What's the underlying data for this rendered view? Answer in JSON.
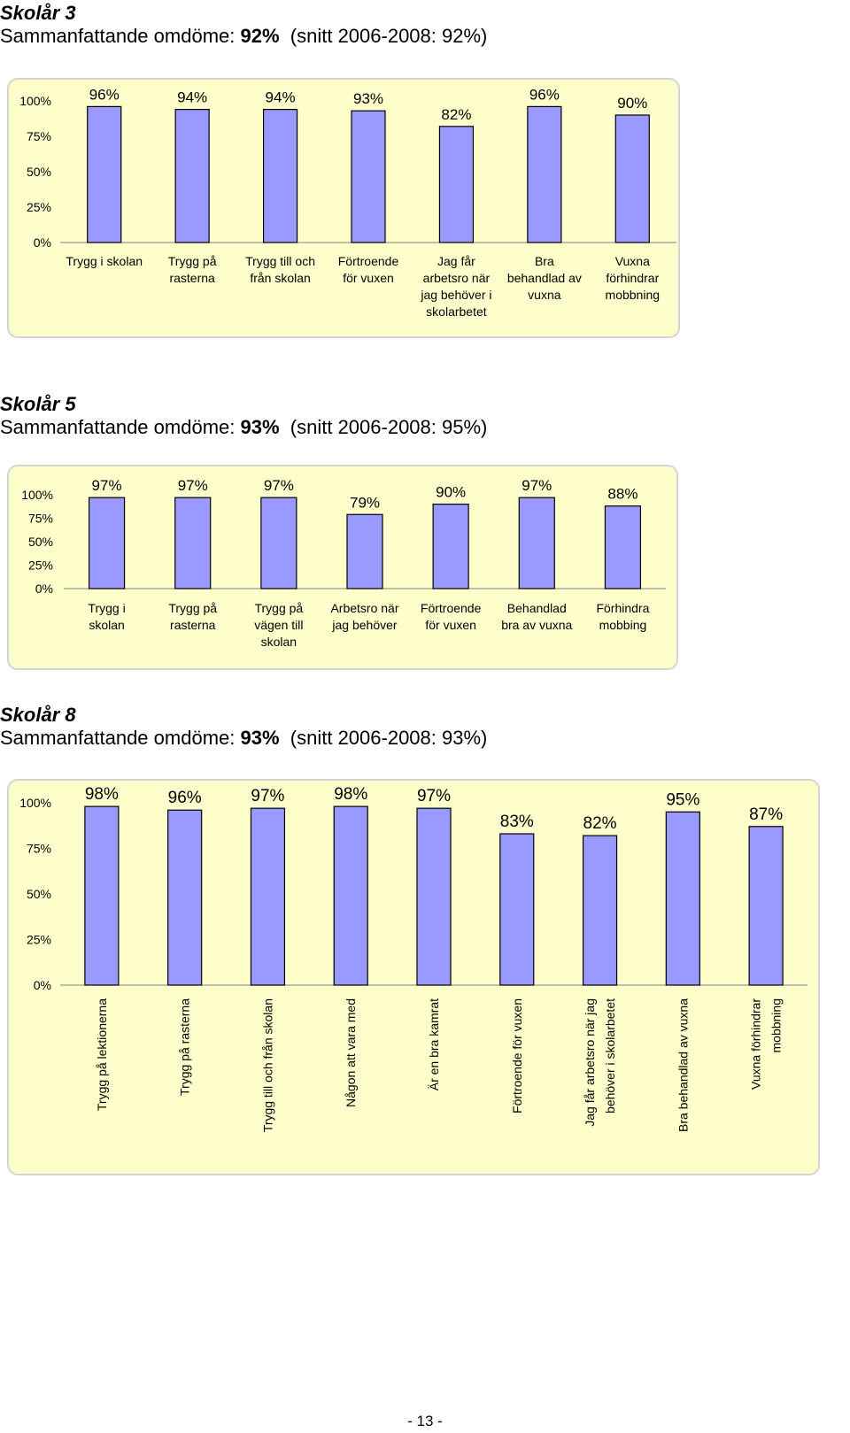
{
  "sections": [
    {
      "grade": "Skolår 3",
      "summary_label": "Sammanfattande omdöme:",
      "summary_value": "92%",
      "average": "(snitt 2006-2008: 92%)"
    },
    {
      "grade": "Skolår 5",
      "summary_label": "Sammanfattande omdöme:",
      "summary_value": "93%",
      "average": "(snitt 2006-2008: 95%)"
    },
    {
      "grade": "Skolår 8",
      "summary_label": "Sammanfattande omdöme:",
      "summary_value": "93%",
      "average": "(snitt 2006-2008: 93%)"
    }
  ],
  "chart_data": [
    {
      "type": "bar",
      "categories": [
        [
          "Trygg i skolan"
        ],
        [
          "Trygg på",
          "rasterna"
        ],
        [
          "Trygg till och",
          "från skolan"
        ],
        [
          "Förtroende",
          "för vuxen"
        ],
        [
          "Jag får",
          "arbetsro när",
          "jag behöver i",
          "skolarbetet"
        ],
        [
          "Bra",
          "behandlad av",
          "vuxna"
        ],
        [
          "Vuxna",
          "förhindrar",
          "mobbning"
        ]
      ],
      "values": [
        96,
        94,
        94,
        93,
        82,
        96,
        90
      ],
      "value_labels": [
        "96%",
        "94%",
        "94%",
        "93%",
        "82%",
        "96%",
        "90%"
      ],
      "yticks": [
        "0%",
        "25%",
        "50%",
        "75%",
        "100%"
      ],
      "ylim": [
        0,
        100
      ],
      "bar_color": "#9999ff",
      "xlabel_orientation": "horizontal"
    },
    {
      "type": "bar",
      "categories": [
        [
          "Trygg i",
          "skolan"
        ],
        [
          "Trygg på",
          "rasterna"
        ],
        [
          "Trygg på",
          "vägen till",
          "skolan"
        ],
        [
          "Arbetsro när",
          "jag behöver"
        ],
        [
          "Förtroende",
          "för vuxen"
        ],
        [
          "Behandlad",
          "bra av vuxna"
        ],
        [
          "Förhindra",
          "mobbing"
        ]
      ],
      "values": [
        97,
        97,
        97,
        79,
        90,
        97,
        88
      ],
      "value_labels": [
        "97%",
        "97%",
        "97%",
        "79%",
        "90%",
        "97%",
        "88%"
      ],
      "yticks": [
        "0%",
        "25%",
        "50%",
        "75%",
        "100%"
      ],
      "ylim": [
        0,
        100
      ],
      "bar_color": "#9999ff",
      "xlabel_orientation": "horizontal"
    },
    {
      "type": "bar",
      "categories": [
        [
          "Trygg på lektionerna"
        ],
        [
          "Trygg på rasterna"
        ],
        [
          "Trygg till och från skolan"
        ],
        [
          "Någon att vara med"
        ],
        [
          "Är en bra kamrat"
        ],
        [
          "Förtroende för vuxen"
        ],
        [
          "Jag får arbetsro när jag",
          "behöver i skolarbetet"
        ],
        [
          "Bra behandlad av vuxna"
        ],
        [
          "Vuxna förhindrar",
          "mobbning"
        ]
      ],
      "values": [
        98,
        96,
        97,
        98,
        97,
        83,
        82,
        95,
        87
      ],
      "value_labels": [
        "98%",
        "96%",
        "97%",
        "98%",
        "97%",
        "83%",
        "82%",
        "95%",
        "87%"
      ],
      "yticks": [
        "0%",
        "25%",
        "50%",
        "75%",
        "100%"
      ],
      "ylim": [
        0,
        100
      ],
      "bar_color": "#9999ff",
      "xlabel_orientation": "vertical"
    }
  ],
  "page_number": "- 13 -"
}
